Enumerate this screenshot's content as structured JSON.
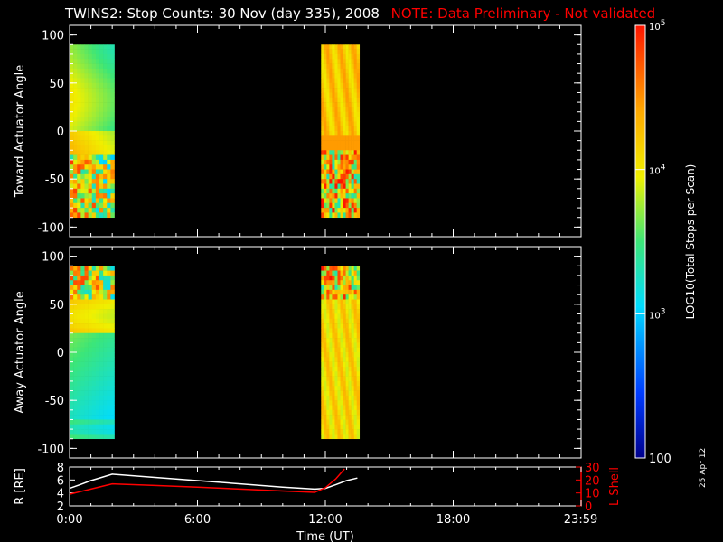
{
  "title": {
    "main": "TWINS2: Stop Counts: 30 Nov (day 335), 2008",
    "note": "NOTE: Data Preliminary - Not validated"
  },
  "date_stamp": "25 Apr 12",
  "colors": {
    "background": "#000000",
    "foreground": "#ffffff",
    "note": "#ff0000",
    "r_trace": "#ffffff",
    "lshell_trace": "#ff0000"
  },
  "chart_data": [
    {
      "type": "heatmap",
      "ylabel": "Toward Actuator Angle",
      "xlim": [
        0,
        24
      ],
      "ylim": [
        -110,
        110
      ],
      "y_ticks": [
        "100",
        "50",
        "0",
        "-50",
        "-100"
      ],
      "y_tick_values": [
        100,
        50,
        0,
        -50,
        -100
      ],
      "angle_range": [
        -90,
        90
      ],
      "data_intervals_hours": [
        [
          0.0,
          2.1
        ],
        [
          11.8,
          13.6
        ]
      ],
      "colormap_scale": "log10",
      "grid": false
    },
    {
      "type": "heatmap",
      "ylabel": "Away Actuator Angle",
      "xlim": [
        0,
        24
      ],
      "ylim": [
        -110,
        110
      ],
      "y_ticks": [
        "100",
        "50",
        "0",
        "-50",
        "-100"
      ],
      "y_tick_values": [
        100,
        50,
        0,
        -50,
        -100
      ],
      "angle_range": [
        -90,
        90
      ],
      "data_intervals_hours": [
        [
          0.0,
          2.1
        ],
        [
          11.8,
          13.6
        ]
      ],
      "colormap_scale": "log10",
      "grid": false
    },
    {
      "type": "line",
      "xlabel": "Time (UT)",
      "x_ticks": [
        "0:00",
        "6:00",
        "12:00",
        "18:00",
        "23:59"
      ],
      "x_tick_values": [
        0,
        6,
        12,
        18,
        23.98
      ],
      "xlim": [
        0,
        24
      ],
      "left_axis": {
        "label": "R [RE]",
        "ylim": [
          2,
          8
        ],
        "ticks": [
          "8",
          "6",
          "4",
          "2"
        ],
        "tick_values": [
          8,
          6,
          4,
          2
        ]
      },
      "right_axis": {
        "label": "L Shell",
        "ylim": [
          0,
          30
        ],
        "ticks": [
          "30",
          "20",
          "10",
          "0"
        ],
        "tick_values": [
          30,
          20,
          10,
          0
        ]
      },
      "series": [
        {
          "axis": "left",
          "x": [
            0,
            0.5,
            1.0,
            1.5,
            2.0,
            4.0,
            6.0,
            8.0,
            10.0,
            11.5,
            12.0,
            12.5,
            13.0,
            13.5
          ],
          "values": [
            4.7,
            5.3,
            5.9,
            6.4,
            6.9,
            6.4,
            5.9,
            5.4,
            4.9,
            4.6,
            4.7,
            5.3,
            5.9,
            6.3
          ],
          "color": "#ffffff"
        },
        {
          "axis": "right",
          "x": [
            0,
            0.5,
            1.0,
            1.5,
            2.0,
            4.0,
            6.0,
            8.0,
            10.0,
            11.5,
            12.0,
            12.5,
            12.9
          ],
          "values": [
            9.0,
            11.0,
            13.0,
            15.0,
            17.0,
            15.8,
            14.5,
            13.0,
            11.5,
            10.5,
            14.0,
            21.0,
            28.5
          ],
          "color": "#ff0000"
        }
      ]
    },
    {
      "type": "heatmap",
      "ylabel": "LOG10(Total Stops per Scan)",
      "colorbar_ticks": [
        "10^5",
        "10^4",
        "10^3",
        "100"
      ],
      "colorbar_tick_values": [
        100000,
        10000,
        1000,
        100
      ],
      "zlim": [
        100,
        100000
      ],
      "colorbar_scale": "log10"
    }
  ]
}
